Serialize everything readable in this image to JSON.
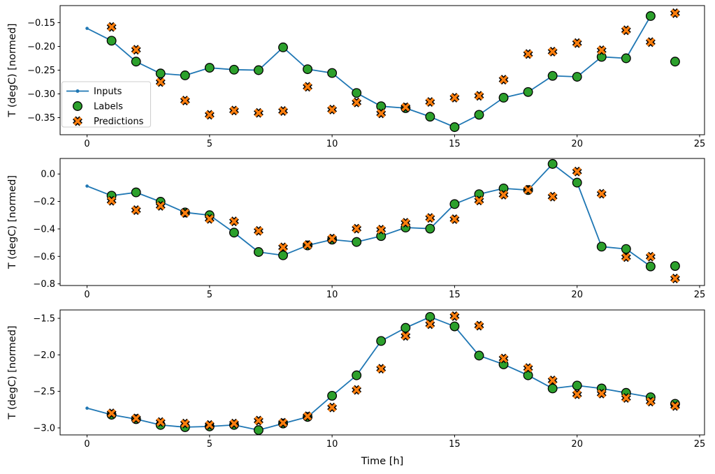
{
  "figure": {
    "xlabel": "Time [h]",
    "ylabel": "T (degC) [normed]",
    "background": "#ffffff",
    "colors": {
      "inputs": "#1f77b4",
      "labels": "#2ca02c",
      "predictions": "#ff7f0e",
      "marker_edge": "#000000",
      "spine": "#000000",
      "text": "#000000",
      "legend_border": "#cccccc",
      "legend_bg": "#ffffff"
    },
    "legend": {
      "position": "left-center of top subplot",
      "items": [
        {
          "label": "Inputs",
          "marker": "line-with-dot-icon"
        },
        {
          "label": "Labels",
          "marker": "circle-icon"
        },
        {
          "label": "Predictions",
          "marker": "x-cross-icon"
        }
      ]
    }
  },
  "chart_data": [
    {
      "type": "line",
      "subplot": 1,
      "ylabel": "T (degC) [normed]",
      "x_ticks": [
        0,
        5,
        10,
        15,
        20,
        25
      ],
      "x_tick_labels": [
        "0",
        "5",
        "10",
        "15",
        "20",
        "25"
      ],
      "y_ticks": [
        -0.15,
        -0.2,
        -0.25,
        -0.3,
        -0.35
      ],
      "y_tick_labels": [
        "−0.15",
        "−0.20",
        "−0.25",
        "−0.30",
        "−0.35"
      ],
      "xlim": [
        -1.1,
        25.2
      ],
      "ylim": [
        -0.386,
        -0.114
      ],
      "grid": false,
      "legend_position": "center-left",
      "series": [
        {
          "name": "Inputs",
          "style": "line+dot",
          "x": [
            0,
            1,
            2,
            3,
            4,
            5,
            6,
            7,
            8,
            9,
            10,
            11,
            12,
            13,
            14,
            15,
            16,
            17,
            18,
            19,
            20,
            21,
            22,
            23
          ],
          "y": [
            -0.162,
            -0.188,
            -0.232,
            -0.257,
            -0.261,
            -0.245,
            -0.249,
            -0.25,
            -0.202,
            -0.248,
            -0.256,
            -0.298,
            -0.326,
            -0.33,
            -0.348,
            -0.37,
            -0.344,
            -0.308,
            -0.296,
            -0.262,
            -0.264,
            -0.222,
            -0.225,
            -0.136
          ]
        },
        {
          "name": "Labels",
          "style": "circle",
          "x": [
            1,
            2,
            3,
            4,
            5,
            6,
            7,
            8,
            9,
            10,
            11,
            12,
            13,
            14,
            15,
            16,
            17,
            18,
            19,
            20,
            21,
            22,
            23,
            24
          ],
          "y": [
            -0.188,
            -0.232,
            -0.257,
            -0.261,
            -0.245,
            -0.249,
            -0.25,
            -0.202,
            -0.248,
            -0.256,
            -0.298,
            -0.326,
            -0.33,
            -0.348,
            -0.37,
            -0.344,
            -0.308,
            -0.296,
            -0.262,
            -0.264,
            -0.222,
            -0.225,
            -0.136,
            -0.232
          ]
        },
        {
          "name": "Predictions",
          "style": "x-marker",
          "x": [
            1,
            2,
            3,
            4,
            5,
            6,
            7,
            8,
            9,
            10,
            11,
            12,
            13,
            14,
            15,
            16,
            17,
            18,
            19,
            20,
            21,
            22,
            23,
            24
          ],
          "y": [
            -0.159,
            -0.207,
            -0.275,
            -0.314,
            -0.344,
            -0.335,
            -0.34,
            -0.336,
            -0.285,
            -0.333,
            -0.318,
            -0.341,
            -0.328,
            -0.317,
            -0.308,
            -0.304,
            -0.27,
            -0.216,
            -0.211,
            -0.193,
            -0.208,
            -0.166,
            -0.191,
            -0.13
          ]
        }
      ]
    },
    {
      "type": "line",
      "subplot": 2,
      "ylabel": "T (degC) [normed]",
      "x_ticks": [
        0,
        5,
        10,
        15,
        20,
        25
      ],
      "x_tick_labels": [
        "0",
        "5",
        "10",
        "15",
        "20",
        "25"
      ],
      "y_ticks": [
        0.0,
        -0.2,
        -0.4,
        -0.6,
        -0.8
      ],
      "y_tick_labels": [
        "0.0",
        "−0.2",
        "−0.4",
        "−0.6",
        "−0.8"
      ],
      "xlim": [
        -1.1,
        25.2
      ],
      "ylim": [
        -0.812,
        0.113
      ],
      "grid": false,
      "series": [
        {
          "name": "Inputs",
          "style": "line+dot",
          "x": [
            0,
            1,
            2,
            3,
            4,
            5,
            6,
            7,
            8,
            9,
            10,
            11,
            12,
            13,
            14,
            15,
            16,
            17,
            18,
            19,
            20,
            21,
            22,
            23
          ],
          "y": [
            -0.088,
            -0.158,
            -0.134,
            -0.202,
            -0.28,
            -0.3,
            -0.427,
            -0.568,
            -0.592,
            -0.52,
            -0.478,
            -0.495,
            -0.452,
            -0.39,
            -0.398,
            -0.219,
            -0.147,
            -0.105,
            -0.117,
            0.073,
            -0.063,
            -0.529,
            -0.546,
            -0.673
          ]
        },
        {
          "name": "Labels",
          "style": "circle",
          "x": [
            1,
            2,
            3,
            4,
            5,
            6,
            7,
            8,
            9,
            10,
            11,
            12,
            13,
            14,
            15,
            16,
            17,
            18,
            19,
            20,
            21,
            22,
            23,
            24
          ],
          "y": [
            -0.158,
            -0.134,
            -0.202,
            -0.28,
            -0.3,
            -0.427,
            -0.568,
            -0.592,
            -0.52,
            -0.478,
            -0.495,
            -0.452,
            -0.39,
            -0.398,
            -0.219,
            -0.147,
            -0.105,
            -0.117,
            0.073,
            -0.063,
            -0.529,
            -0.546,
            -0.673,
            -0.67
          ]
        },
        {
          "name": "Predictions",
          "style": "x-marker",
          "x": [
            1,
            2,
            3,
            4,
            5,
            6,
            7,
            8,
            9,
            10,
            11,
            12,
            13,
            14,
            15,
            16,
            17,
            18,
            19,
            20,
            21,
            22,
            23,
            24
          ],
          "y": [
            -0.195,
            -0.263,
            -0.232,
            -0.284,
            -0.327,
            -0.345,
            -0.414,
            -0.534,
            -0.517,
            -0.47,
            -0.398,
            -0.405,
            -0.355,
            -0.32,
            -0.329,
            -0.193,
            -0.151,
            -0.115,
            -0.165,
            0.018,
            -0.144,
            -0.605,
            -0.602,
            -0.761
          ]
        }
      ]
    },
    {
      "type": "line",
      "subplot": 3,
      "xlabel": "Time [h]",
      "ylabel": "T (degC) [normed]",
      "x_ticks": [
        0,
        5,
        10,
        15,
        20,
        25
      ],
      "x_tick_labels": [
        "0",
        "5",
        "10",
        "15",
        "20",
        "25"
      ],
      "y_ticks": [
        -1.5,
        -2.0,
        -2.5,
        -3.0
      ],
      "y_tick_labels": [
        "−1.5",
        "−2.0",
        "−2.5",
        "−3.0"
      ],
      "xlim": [
        -1.1,
        25.2
      ],
      "ylim": [
        -3.096,
        -1.385
      ],
      "grid": false,
      "series": [
        {
          "name": "Inputs",
          "style": "line+dot",
          "x": [
            0,
            1,
            2,
            3,
            4,
            5,
            6,
            7,
            8,
            9,
            10,
            11,
            12,
            13,
            14,
            15,
            16,
            17,
            18,
            19,
            20,
            21,
            22,
            23
          ],
          "y": [
            -2.73,
            -2.82,
            -2.88,
            -2.96,
            -2.99,
            -2.98,
            -2.96,
            -3.03,
            -2.94,
            -2.85,
            -2.56,
            -2.28,
            -1.81,
            -1.63,
            -1.48,
            -1.61,
            -2.01,
            -2.13,
            -2.28,
            -2.46,
            -2.42,
            -2.46,
            -2.52,
            -2.58
          ]
        },
        {
          "name": "Labels",
          "style": "circle",
          "x": [
            1,
            2,
            3,
            4,
            5,
            6,
            7,
            8,
            9,
            10,
            11,
            12,
            13,
            14,
            15,
            16,
            17,
            18,
            19,
            20,
            21,
            22,
            23,
            24
          ],
          "y": [
            -2.82,
            -2.88,
            -2.96,
            -2.99,
            -2.98,
            -2.96,
            -3.03,
            -2.94,
            -2.85,
            -2.56,
            -2.28,
            -1.81,
            -1.63,
            -1.48,
            -1.61,
            -2.01,
            -2.13,
            -2.28,
            -2.46,
            -2.42,
            -2.46,
            -2.52,
            -2.58,
            -2.67
          ]
        },
        {
          "name": "Predictions",
          "style": "x-marker",
          "x": [
            1,
            2,
            3,
            4,
            5,
            6,
            7,
            8,
            9,
            10,
            11,
            12,
            13,
            14,
            15,
            16,
            17,
            18,
            19,
            20,
            21,
            22,
            23,
            24
          ],
          "y": [
            -2.8,
            -2.87,
            -2.92,
            -2.94,
            -2.96,
            -2.94,
            -2.9,
            -2.93,
            -2.84,
            -2.72,
            -2.48,
            -2.19,
            -1.74,
            -1.58,
            -1.47,
            -1.6,
            -2.05,
            -2.18,
            -2.35,
            -2.54,
            -2.53,
            -2.59,
            -2.64,
            -2.7
          ]
        }
      ]
    }
  ]
}
